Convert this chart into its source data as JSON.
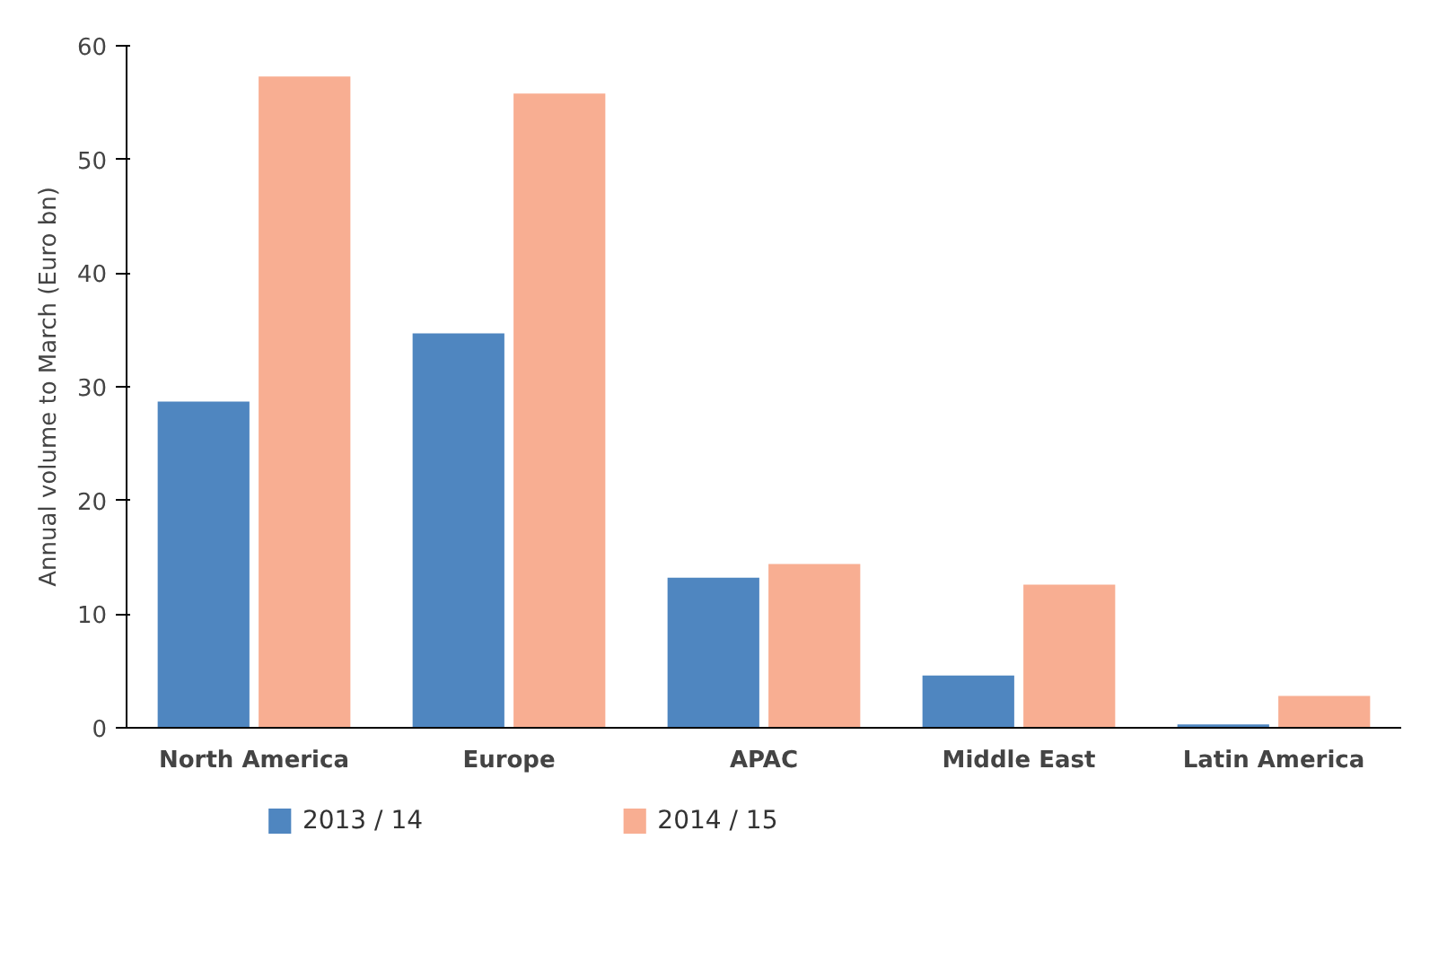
{
  "chart_data": {
    "type": "bar",
    "ylabel": "Annual volume to March (Euro bn)",
    "categories": [
      "North America",
      "Europe",
      "APAC",
      "Middle East",
      "Latin America"
    ],
    "series": [
      {
        "name": "2013 / 14",
        "color": "#4f86c0",
        "values": [
          28.7,
          34.7,
          13.2,
          4.6,
          0.3
        ]
      },
      {
        "name": "2014 / 15",
        "color": "#f8ae92",
        "values": [
          57.3,
          55.8,
          14.4,
          12.6,
          2.8
        ]
      }
    ],
    "ylim": [
      0,
      60
    ],
    "yticks": [
      0,
      10,
      20,
      30,
      40,
      50,
      60
    ],
    "grid": false,
    "legend": "bottom"
  }
}
